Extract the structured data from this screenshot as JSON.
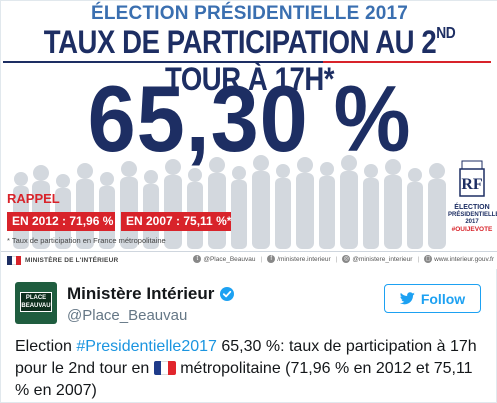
{
  "infographic": {
    "headline_top": "ÉLECTION PRÉSIDENTIELLE 2017",
    "headline_main_pre": "TAUX DE PARTICIPATION AU 2",
    "headline_main_sup": "ND",
    "headline_main_post": " TOUR À 17H",
    "headline_star": "*",
    "big_number": "65,30 %",
    "rappel_label": "RAPPEL",
    "box_2012": "EN 2012 : 71,96 %",
    "box_2007": "EN 2007 : 75,11 %",
    "box_star": "*",
    "footnote": "* Taux de participation en France métropolitaine",
    "logo_line1": "ÉLECTION",
    "logo_line2": "PRÉSIDENTIELLE 2017",
    "logo_line3": "#OUIJEVOTE",
    "logo_mark": "RF",
    "ministere_label": "MINISTÈRE DE L'INTÉRIEUR",
    "social_twitter": "@Place_Beauvau",
    "social_facebook": "/ministere.interieur",
    "social_instagram": "@ministere_interieur",
    "social_web": "www.interieur.gouv.fr",
    "colors": {
      "navy": "#1d2e63",
      "blue": "#3a6fb0",
      "red": "#d8232a"
    }
  },
  "tweet": {
    "avatar_text_line1": "PLACE",
    "avatar_text_line2": "BEAUVAU",
    "display_name": "Ministère Intérieur",
    "handle": "@Place_Beauvau",
    "follow_label": "Follow",
    "text_part1": "Election ",
    "hashtag": "#Presidentielle2017",
    "text_part2": " 65,30 %: taux de participation à 17h pour le 2nd tour en ",
    "text_part3": " métropolitaine (71,96 % en 2012 et 75,11 % en 2007)",
    "flag_icon": "france-flag-icon",
    "colors": {
      "link": "#1b95e0",
      "follow": "#1da1f2",
      "handle": "#657786"
    }
  }
}
